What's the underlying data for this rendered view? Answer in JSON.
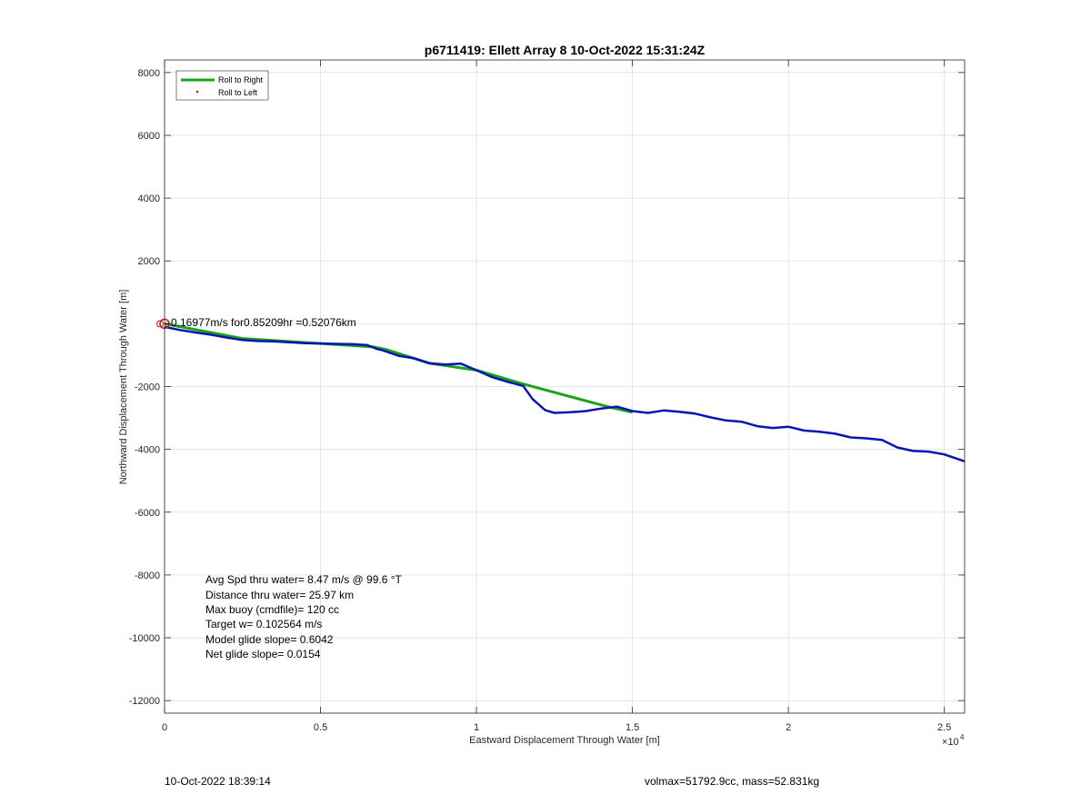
{
  "chart_data": {
    "type": "line",
    "title": "p6711419: Ellett Array 8 10-Oct-2022 15:31:24Z",
    "xlabel": "Eastward Displacement Through Water [m]",
    "ylabel": "Northward Displacement Through Water [m]",
    "x_exponent_label": "10",
    "x_exponent_power": "4",
    "xlim": [
      0,
      25650
    ],
    "ylim": [
      -12400,
      8400
    ],
    "xticks": [
      0,
      5000,
      10000,
      15000,
      20000,
      25000
    ],
    "xtick_labels": [
      "0",
      "0.5",
      "1",
      "1.5",
      "2",
      "2.5"
    ],
    "yticks": [
      -12000,
      -10000,
      -8000,
      -6000,
      -4000,
      -2000,
      0,
      2000,
      4000,
      6000,
      8000
    ],
    "ytick_labels": [
      "-12000",
      "-10000",
      "-8000",
      "-6000",
      "-4000",
      "-2000",
      "",
      "2000",
      "4000",
      "6000",
      "8000"
    ],
    "grid": true,
    "legend_position": "top-left",
    "colors": {
      "roll_right": "#1aa31a",
      "roll_left": "#e01a1a",
      "track": "#0a14b4",
      "marker": "#d01a1a"
    },
    "series": [
      {
        "name": "Roll to Right",
        "style": "line",
        "x": [
          0,
          2500,
          6700,
          7100,
          8500,
          10000,
          11500,
          14200,
          15000
        ],
        "y": [
          0,
          -470,
          -740,
          -820,
          -1260,
          -1480,
          -1920,
          -2640,
          -2820
        ]
      },
      {
        "name": "Roll to Left",
        "style": "dot",
        "x": [],
        "y": []
      },
      {
        "name": "",
        "style": "track",
        "x": [
          0,
          500,
          1000,
          1500,
          2000,
          2500,
          3000,
          3500,
          4000,
          4500,
          5000,
          5500,
          6000,
          6500,
          6800,
          7000,
          7500,
          8000,
          8500,
          9000,
          9500,
          10000,
          10500,
          11000,
          11500,
          11800,
          12200,
          12500,
          13000,
          13500,
          14000,
          14500,
          15000,
          15500,
          16000,
          16500,
          17000,
          17500,
          18000,
          18500,
          19000,
          19500,
          20000,
          20500,
          21000,
          21500,
          22000,
          22500,
          23000,
          23500,
          24000,
          24500,
          25000,
          25650
        ],
        "y": [
          -100,
          -200,
          -280,
          -350,
          -440,
          -520,
          -550,
          -560,
          -590,
          -620,
          -630,
          -640,
          -650,
          -680,
          -800,
          -850,
          -1020,
          -1100,
          -1260,
          -1300,
          -1270,
          -1480,
          -1700,
          -1850,
          -1980,
          -2400,
          -2750,
          -2840,
          -2820,
          -2780,
          -2700,
          -2640,
          -2780,
          -2840,
          -2760,
          -2800,
          -2860,
          -2980,
          -3080,
          -3120,
          -3260,
          -3320,
          -3280,
          -3400,
          -3440,
          -3500,
          -3620,
          -3650,
          -3700,
          -3940,
          -4050,
          -4070,
          -4160,
          -4380
        ]
      }
    ],
    "start_marker": {
      "x": 0,
      "y": 0
    },
    "start_annotation": "0.16977m/s for0.85209hr =0.52076km",
    "stats": [
      "Avg Spd thru water=  8.47 m/s @  99.6 °T",
      "Distance thru water= 25.97 km",
      "Max buoy (cmdfile)= 120 cc",
      "Target w= 0.102564 m/s",
      "Model glide slope= 0.6042",
      "Net glide slope= 0.0154"
    ]
  },
  "footer": {
    "left": "10-Oct-2022 18:39:14",
    "right": "volmax=51792.9cc, mass=52.831kg"
  }
}
